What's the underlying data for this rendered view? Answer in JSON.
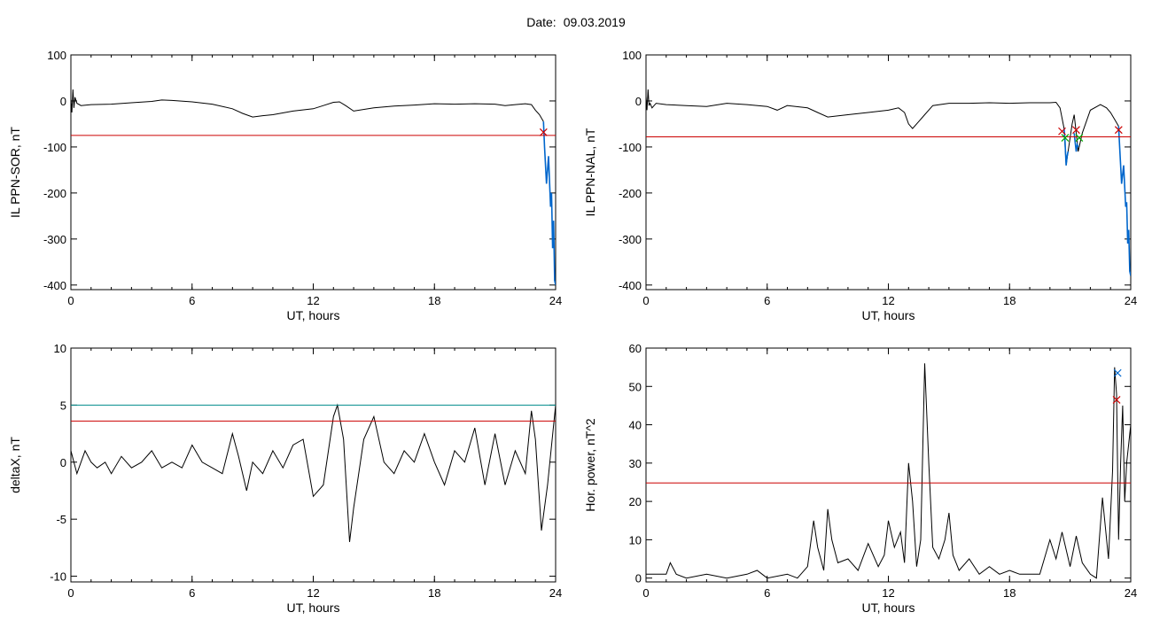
{
  "header": {
    "date_label": "Date:",
    "date_value": "09.03.2019"
  },
  "colors": {
    "trace": "#000000",
    "threshold": "#cc0000",
    "upper_threshold": "#008b8b",
    "highlight": "#0066cc",
    "marker_red": "#cc0000",
    "marker_green": "#00aa00",
    "marker_blue": "#0066cc"
  },
  "chart_data": [
    {
      "type": "line",
      "xlabel": "UT, hours",
      "ylabel": "IL PPN-SOR, nT",
      "xlim": [
        0,
        24
      ],
      "ylim": [
        -410,
        100
      ],
      "xticks": [
        0,
        6,
        12,
        18,
        24
      ],
      "yticks": [
        100,
        0,
        -100,
        -200,
        -300,
        -400
      ],
      "series": [
        {
          "role": "trace",
          "x": [
            0,
            0.05,
            0.1,
            0.15,
            0.2,
            0.3,
            0.5,
            1,
            2,
            3,
            4,
            4.5,
            5,
            6,
            7,
            8,
            8.5,
            9,
            9.5,
            10,
            11,
            12,
            12.5,
            13,
            13.3,
            13.6,
            14,
            15,
            16,
            17,
            18,
            19,
            20,
            21,
            21.5,
            22,
            22.5,
            22.8,
            23,
            23.2,
            23.4
          ],
          "y": [
            5,
            -25,
            25,
            -15,
            8,
            -5,
            -10,
            -8,
            -7,
            -4,
            -1,
            2,
            1,
            -2,
            -7,
            -17,
            -27,
            -35,
            -32,
            -30,
            -22,
            -17,
            -10,
            -3,
            -2,
            -10,
            -22,
            -15,
            -11,
            -9,
            -6,
            -7,
            -6,
            -7,
            -10,
            -8,
            -6,
            -8,
            -20,
            -30,
            -45
          ]
        },
        {
          "role": "highlight",
          "x": [
            23.4,
            23.45,
            23.55,
            23.65,
            23.75,
            23.8,
            23.85,
            23.9,
            23.95,
            24
          ],
          "y": [
            -45,
            -100,
            -180,
            -120,
            -230,
            -200,
            -320,
            -260,
            -390,
            -400
          ]
        },
        {
          "role": "threshold",
          "x": [
            0,
            24
          ],
          "y": [
            -75,
            -75
          ]
        }
      ],
      "markers": [
        {
          "x": 23.4,
          "y": -68,
          "color": "red"
        }
      ]
    },
    {
      "type": "line",
      "xlabel": "UT, hours",
      "ylabel": "IL PPN-NAL, nT",
      "xlim": [
        0,
        24
      ],
      "ylim": [
        -410,
        100
      ],
      "xticks": [
        0,
        6,
        12,
        18,
        24
      ],
      "yticks": [
        100,
        0,
        -100,
        -200,
        -300,
        -400
      ],
      "series": [
        {
          "role": "trace",
          "x": [
            0,
            0.05,
            0.1,
            0.15,
            0.2,
            0.3,
            0.5,
            1,
            2,
            3,
            4,
            5,
            6,
            6.5,
            7,
            8,
            8.5,
            9,
            10,
            11,
            12,
            12.5,
            12.8,
            13,
            13.2,
            13.5,
            13.8,
            14.2,
            15,
            16,
            17,
            18,
            19,
            20,
            20.3,
            20.5,
            20.7,
            20.8,
            20.9,
            21.1,
            21.2,
            21.3,
            21.4,
            21.6,
            22,
            22.5,
            22.8,
            23,
            23.2,
            23.4
          ],
          "y": [
            10,
            -20,
            25,
            -10,
            -5,
            -15,
            -5,
            -8,
            -10,
            -12,
            -5,
            -8,
            -12,
            -20,
            -10,
            -15,
            -25,
            -35,
            -30,
            -25,
            -20,
            -15,
            -25,
            -50,
            -60,
            -45,
            -30,
            -10,
            -5,
            -5,
            -4,
            -5,
            -4,
            -4,
            -3,
            -15,
            -60,
            -140,
            -110,
            -50,
            -30,
            -70,
            -110,
            -70,
            -20,
            -8,
            -15,
            -25,
            -40,
            -55
          ]
        },
        {
          "role": "highlight",
          "x": [
            20.7,
            20.75,
            20.8,
            20.85,
            20.9
          ],
          "y": [
            -60,
            -90,
            -140,
            -120,
            -110
          ]
        },
        {
          "role": "highlight",
          "x": [
            21.2,
            21.25,
            21.3,
            21.35,
            21.4
          ],
          "y": [
            -70,
            -90,
            -110,
            -95,
            -100
          ]
        },
        {
          "role": "highlight",
          "x": [
            23.4,
            23.45,
            23.55,
            23.65,
            23.75,
            23.8,
            23.85,
            23.9,
            23.95,
            24
          ],
          "y": [
            -55,
            -100,
            -180,
            -140,
            -230,
            -220,
            -310,
            -280,
            -370,
            -380
          ]
        },
        {
          "role": "threshold",
          "x": [
            0,
            24
          ],
          "y": [
            -78,
            -78
          ]
        }
      ],
      "markers": [
        {
          "x": 20.6,
          "y": -66,
          "color": "red"
        },
        {
          "x": 20.75,
          "y": -80,
          "color": "green"
        },
        {
          "x": 21.3,
          "y": -63,
          "color": "red"
        },
        {
          "x": 21.45,
          "y": -80,
          "color": "green"
        },
        {
          "x": 23.4,
          "y": -63,
          "color": "red"
        }
      ]
    },
    {
      "type": "line",
      "xlabel": "UT, hours",
      "ylabel": "deltaX, nT",
      "xlim": [
        0,
        24
      ],
      "ylim": [
        -10.5,
        10
      ],
      "xticks": [
        0,
        6,
        12,
        18,
        24
      ],
      "yticks": [
        10,
        5,
        0,
        -5,
        -10
      ],
      "series": [
        {
          "role": "trace",
          "x": [
            0,
            0.3,
            0.7,
            1,
            1.3,
            1.7,
            2,
            2.5,
            3,
            3.5,
            4,
            4.5,
            5,
            5.5,
            6,
            6.5,
            7,
            7.5,
            8,
            8.3,
            8.7,
            9,
            9.5,
            10,
            10.5,
            11,
            11.5,
            12,
            12.5,
            13,
            13.2,
            13.5,
            13.8,
            14,
            14.5,
            15,
            15.5,
            16,
            16.5,
            17,
            17.5,
            18,
            18.5,
            19,
            19.5,
            20,
            20.5,
            21,
            21.5,
            22,
            22.5,
            22.8,
            23,
            23.3,
            23.6,
            24
          ],
          "y": [
            1,
            -1,
            1,
            0,
            -0.5,
            0,
            -1,
            0.5,
            -0.5,
            0,
            1,
            -0.5,
            0,
            -0.5,
            1.5,
            0,
            -0.5,
            -1,
            2.5,
            0.5,
            -2.5,
            0,
            -1,
            1,
            -0.5,
            1.5,
            2,
            -3,
            -2,
            4,
            5,
            2,
            -7,
            -4,
            2,
            4,
            0,
            -1,
            1,
            0,
            2.5,
            0,
            -2,
            1,
            0,
            3,
            -2,
            2.5,
            -2,
            1,
            -1,
            4.5,
            2,
            -6,
            -2,
            5
          ]
        },
        {
          "role": "threshold",
          "x": [
            0,
            24
          ],
          "y": [
            3.6,
            3.6
          ]
        },
        {
          "role": "upper_threshold",
          "x": [
            0,
            24
          ],
          "y": [
            5,
            5
          ]
        }
      ],
      "markers": []
    },
    {
      "type": "line",
      "xlabel": "UT, hours",
      "ylabel": "Hor. power, nT^2",
      "xlim": [
        0,
        24
      ],
      "ylim": [
        -1,
        60
      ],
      "xticks": [
        0,
        6,
        12,
        18,
        24
      ],
      "yticks": [
        60,
        50,
        40,
        30,
        20,
        10,
        0
      ],
      "series": [
        {
          "role": "trace",
          "x": [
            0,
            1,
            1.2,
            1.5,
            2,
            3,
            4,
            5,
            5.5,
            6,
            7,
            7.5,
            8,
            8.3,
            8.5,
            8.8,
            9,
            9.2,
            9.5,
            10,
            10.5,
            11,
            11.5,
            11.8,
            12,
            12.3,
            12.6,
            12.8,
            13,
            13.2,
            13.4,
            13.6,
            13.8,
            14,
            14.2,
            14.5,
            14.8,
            15,
            15.2,
            15.5,
            16,
            16.5,
            17,
            17.5,
            18,
            18.5,
            19,
            19.5,
            20,
            20.3,
            20.6,
            21,
            21.3,
            21.6,
            22,
            22.3,
            22.6,
            22.9,
            23.1,
            23.2,
            23.3,
            23.4,
            23.5,
            23.6,
            23.7,
            23.8,
            24
          ],
          "y": [
            1,
            1,
            4,
            1,
            0,
            1,
            0,
            1,
            2,
            0,
            1,
            0,
            3,
            15,
            8,
            2,
            18,
            10,
            4,
            5,
            2,
            9,
            3,
            6,
            15,
            8,
            12,
            4,
            30,
            20,
            3,
            10,
            56,
            30,
            8,
            5,
            10,
            17,
            6,
            2,
            5,
            1,
            3,
            1,
            2,
            1,
            1,
            1,
            10,
            5,
            12,
            3,
            11,
            4,
            1,
            0,
            21,
            5,
            28,
            55,
            48,
            10,
            30,
            45,
            20,
            30,
            40
          ]
        },
        {
          "role": "threshold",
          "x": [
            0,
            24
          ],
          "y": [
            24.8,
            24.8
          ]
        }
      ],
      "markers": [
        {
          "x": 23.3,
          "y": 46.5,
          "color": "red"
        },
        {
          "x": 23.35,
          "y": 53.5,
          "color": "blue"
        }
      ]
    }
  ]
}
